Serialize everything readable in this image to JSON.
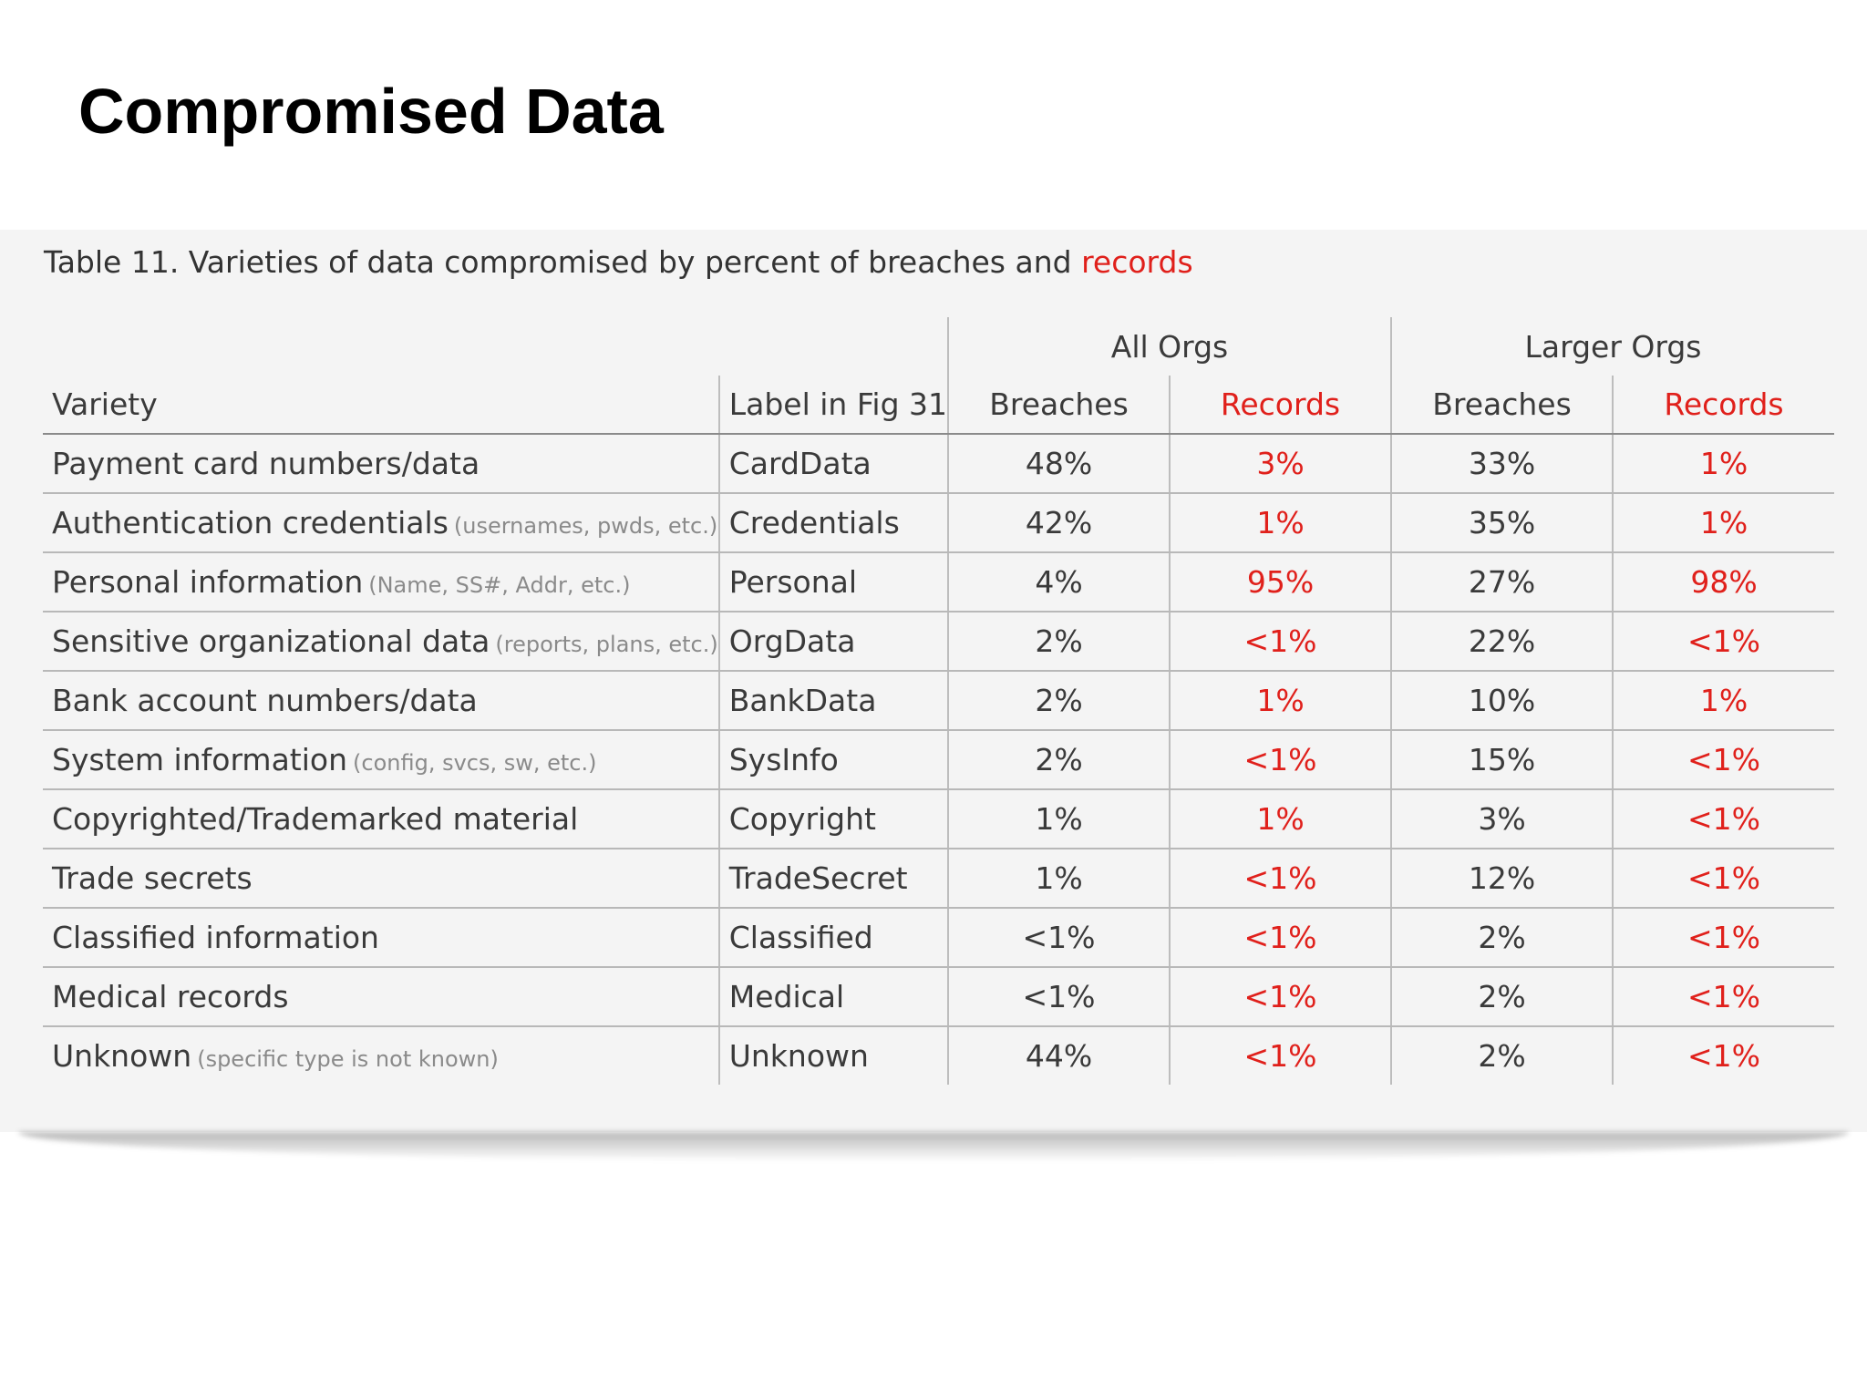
{
  "slide": {
    "title": "Compromised Data"
  },
  "table": {
    "caption_prefix": "Table 11. Varieties of data compromised by percent of breaches and ",
    "caption_highlight": "records",
    "groups": [
      "All Orgs",
      "Larger Orgs"
    ],
    "headers": {
      "variety": "Variety",
      "label": "Label in Fig 31",
      "all_breaches": "Breaches",
      "all_records": "Records",
      "larger_breaches": "Breaches",
      "larger_records": "Records"
    },
    "rows": [
      {
        "variety": "Payment card numbers/data",
        "note": "",
        "label": "CardData",
        "all_breaches": "48%",
        "all_records": "3%",
        "larger_breaches": "33%",
        "larger_records": "1%"
      },
      {
        "variety": "Authentication credentials",
        "note": "(usernames, pwds, etc.)",
        "label": "Credentials",
        "all_breaches": "42%",
        "all_records": "1%",
        "larger_breaches": "35%",
        "larger_records": "1%"
      },
      {
        "variety": "Personal information",
        "note": "(Name, SS#, Addr, etc.)",
        "label": "Personal",
        "all_breaches": "4%",
        "all_records": "95%",
        "larger_breaches": "27%",
        "larger_records": "98%"
      },
      {
        "variety": "Sensitive organizational data",
        "note": "(reports, plans, etc.)",
        "label": "OrgData",
        "all_breaches": "2%",
        "all_records": "<1%",
        "larger_breaches": "22%",
        "larger_records": "<1%"
      },
      {
        "variety": "Bank account numbers/data",
        "note": "",
        "label": "BankData",
        "all_breaches": "2%",
        "all_records": "1%",
        "larger_breaches": "10%",
        "larger_records": "1%"
      },
      {
        "variety": "System information",
        "note": "(config, svcs, sw, etc.)",
        "label": "SysInfo",
        "all_breaches": "2%",
        "all_records": "<1%",
        "larger_breaches": "15%",
        "larger_records": "<1%"
      },
      {
        "variety": "Copyrighted/Trademarked material",
        "note": "",
        "label": "Copyright",
        "all_breaches": "1%",
        "all_records": "1%",
        "larger_breaches": "3%",
        "larger_records": "<1%"
      },
      {
        "variety": "Trade secrets",
        "note": "",
        "label": "TradeSecret",
        "all_breaches": "1%",
        "all_records": "<1%",
        "larger_breaches": "12%",
        "larger_records": "<1%"
      },
      {
        "variety": "Classified information",
        "note": "",
        "label": "Classified",
        "all_breaches": "<1%",
        "all_records": "<1%",
        "larger_breaches": "2%",
        "larger_records": "<1%"
      },
      {
        "variety": "Medical records",
        "note": "",
        "label": "Medical",
        "all_breaches": "<1%",
        "all_records": "<1%",
        "larger_breaches": "2%",
        "larger_records": "<1%"
      },
      {
        "variety": "Unknown",
        "note": "(specific type is not known)",
        "label": "Unknown",
        "all_breaches": "44%",
        "all_records": "<1%",
        "larger_breaches": "2%",
        "larger_records": "<1%"
      }
    ]
  },
  "colors": {
    "records_red": "#e0201b",
    "title_black": "#000000",
    "panel_bg": "#f4f4f4"
  }
}
